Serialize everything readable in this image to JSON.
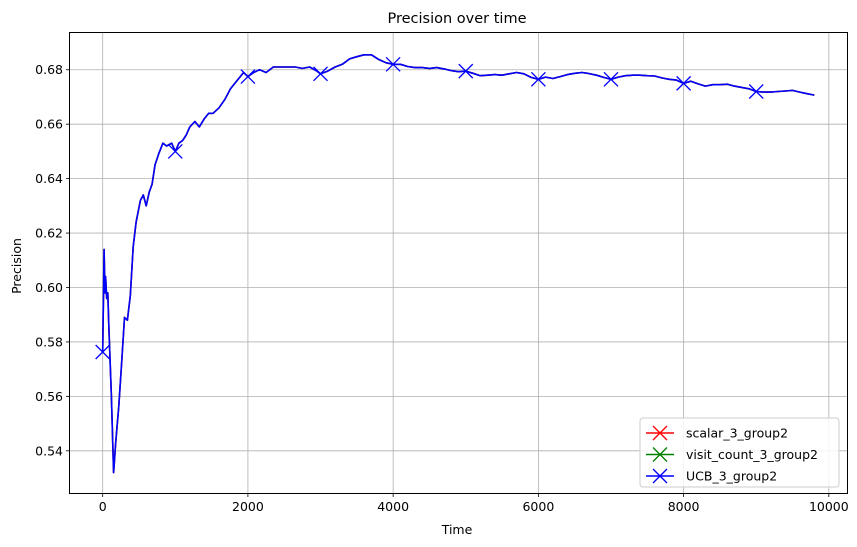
{
  "chart_data": {
    "type": "line",
    "title": "Precision over time",
    "xlabel": "Time",
    "ylabel": "Precision",
    "xlim": [
      -450,
      10250
    ],
    "ylim": [
      0.5245,
      0.6935
    ],
    "xticks": [
      0,
      2000,
      4000,
      6000,
      8000,
      10000
    ],
    "xtick_labels": [
      "0",
      "2000",
      "4000",
      "6000",
      "8000",
      "10000"
    ],
    "yticks": [
      0.54,
      0.56,
      0.58,
      0.6,
      0.62,
      0.64,
      0.66,
      0.68
    ],
    "ytick_labels": [
      "0.54",
      "0.56",
      "0.58",
      "0.60",
      "0.62",
      "0.64",
      "0.66",
      "0.68"
    ],
    "grid": true,
    "legend_position": "lower-right",
    "series": [
      {
        "name": "scalar_3_group2",
        "color": "#ff0000",
        "marker": "x",
        "x": [
          0,
          20,
          30,
          40,
          55,
          70,
          85,
          100,
          120,
          150,
          180,
          220,
          260,
          300,
          340,
          380,
          420,
          460,
          520,
          560,
          600,
          640,
          680,
          720,
          770,
          830,
          880,
          950,
          1000,
          1050,
          1100,
          1150,
          1200,
          1270,
          1330,
          1400,
          1460,
          1520,
          1600,
          1680,
          1760,
          1850,
          1940,
          2000,
          2080,
          2160,
          2250,
          2350,
          2450,
          2550,
          2650,
          2750,
          2850,
          2950,
          3000,
          3100,
          3200,
          3300,
          3400,
          3500,
          3600,
          3700,
          3800,
          3900,
          4000,
          4100,
          4200,
          4300,
          4400,
          4500,
          4600,
          4700,
          4800,
          4900,
          5000,
          5100,
          5200,
          5300,
          5400,
          5500,
          5600,
          5700,
          5800,
          5900,
          6000,
          6100,
          6200,
          6300,
          6400,
          6500,
          6600,
          6700,
          6800,
          6900,
          7000,
          7100,
          7200,
          7300,
          7400,
          7500,
          7600,
          7700,
          7800,
          7900,
          8000,
          8100,
          8200,
          8300,
          8400,
          8500,
          8600,
          8700,
          8800,
          8900,
          9000,
          9100,
          9200,
          9300,
          9400,
          9500,
          9600,
          9700,
          9800
        ],
        "y": [
          0.5763,
          0.614,
          0.598,
          0.604,
          0.596,
          0.598,
          0.586,
          0.575,
          0.56,
          0.532,
          0.543,
          0.556,
          0.572,
          0.589,
          0.588,
          0.597,
          0.615,
          0.624,
          0.632,
          0.634,
          0.63,
          0.635,
          0.638,
          0.645,
          0.649,
          0.653,
          0.652,
          0.653,
          0.65,
          0.653,
          0.654,
          0.656,
          0.659,
          0.661,
          0.659,
          0.662,
          0.664,
          0.664,
          0.666,
          0.669,
          0.673,
          0.676,
          0.679,
          0.6775,
          0.679,
          0.68,
          0.679,
          0.681,
          0.681,
          0.681,
          0.681,
          0.6805,
          0.681,
          0.6795,
          0.6785,
          0.6795,
          0.681,
          0.682,
          0.684,
          0.6848,
          0.6855,
          0.6855,
          0.6838,
          0.6826,
          0.682,
          0.682,
          0.6812,
          0.6808,
          0.6808,
          0.6805,
          0.6808,
          0.6803,
          0.6797,
          0.6793,
          0.6795,
          0.6787,
          0.6778,
          0.678,
          0.6782,
          0.678,
          0.6785,
          0.679,
          0.6785,
          0.6772,
          0.6765,
          0.6773,
          0.6768,
          0.6775,
          0.6782,
          0.6787,
          0.679,
          0.6786,
          0.678,
          0.6772,
          0.6765,
          0.6773,
          0.6778,
          0.678,
          0.678,
          0.6778,
          0.6777,
          0.677,
          0.6765,
          0.6762,
          0.675,
          0.6758,
          0.6748,
          0.674,
          0.6745,
          0.6745,
          0.6747,
          0.674,
          0.6735,
          0.673,
          0.672,
          0.6718,
          0.6718,
          0.672,
          0.6722,
          0.6724,
          0.6718,
          0.6712,
          0.6707
        ]
      },
      {
        "name": "visit_count_3_group2",
        "color": "#008000",
        "marker": "x"
      },
      {
        "name": "UCB_3_group2",
        "color": "#0000ff",
        "marker": "x",
        "marker_x": [
          0,
          1000,
          2000,
          3000,
          4000,
          5000,
          6000,
          7000,
          8000,
          9000
        ],
        "marker_y": [
          0.5763,
          0.65,
          0.6775,
          0.6785,
          0.682,
          0.6795,
          0.6765,
          0.6765,
          0.675,
          0.672
        ]
      }
    ]
  }
}
